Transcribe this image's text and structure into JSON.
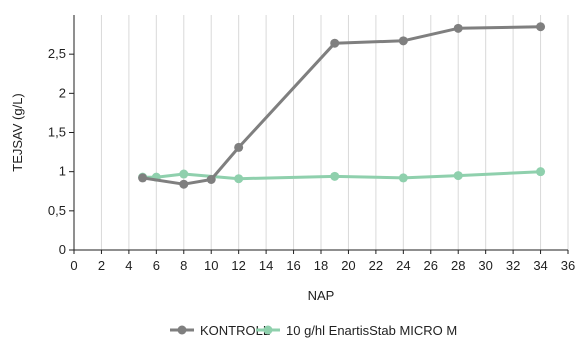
{
  "chart_data": {
    "type": "line",
    "xlabel": "NAP",
    "ylabel": "TEJSAV (g/L)",
    "x_ticks": [
      0,
      2,
      4,
      6,
      8,
      10,
      12,
      14,
      16,
      18,
      20,
      22,
      24,
      26,
      28,
      30,
      32,
      34,
      36
    ],
    "y_ticks": [
      {
        "value": 0,
        "label": "0"
      },
      {
        "value": 0.5,
        "label": "0,5"
      },
      {
        "value": 1,
        "label": "1"
      },
      {
        "value": 1.5,
        "label": "1,5"
      },
      {
        "value": 2,
        "label": "2"
      },
      {
        "value": 2.5,
        "label": "2,5"
      }
    ],
    "xlim": [
      0,
      36
    ],
    "ylim": [
      0,
      3
    ],
    "grid": "vertical",
    "legend_position": "bottom",
    "series": [
      {
        "name": "KONTROLL",
        "color": "#7f7f7f",
        "points": [
          {
            "x": 5,
            "y": 0.92
          },
          {
            "x": 8,
            "y": 0.84
          },
          {
            "x": 10,
            "y": 0.9
          },
          {
            "x": 12,
            "y": 1.31
          },
          {
            "x": 19,
            "y": 2.64
          },
          {
            "x": 24,
            "y": 2.67
          },
          {
            "x": 28,
            "y": 2.83
          },
          {
            "x": 34,
            "y": 2.85
          }
        ]
      },
      {
        "name": "10 g/hl EnartisStab MICRO M",
        "color": "#8fd0ad",
        "points": [
          {
            "x": 5,
            "y": 0.93
          },
          {
            "x": 6,
            "y": 0.93
          },
          {
            "x": 8,
            "y": 0.97
          },
          {
            "x": 12,
            "y": 0.91
          },
          {
            "x": 19,
            "y": 0.94
          },
          {
            "x": 24,
            "y": 0.92
          },
          {
            "x": 28,
            "y": 0.95
          },
          {
            "x": 34,
            "y": 1.0
          }
        ]
      }
    ]
  }
}
